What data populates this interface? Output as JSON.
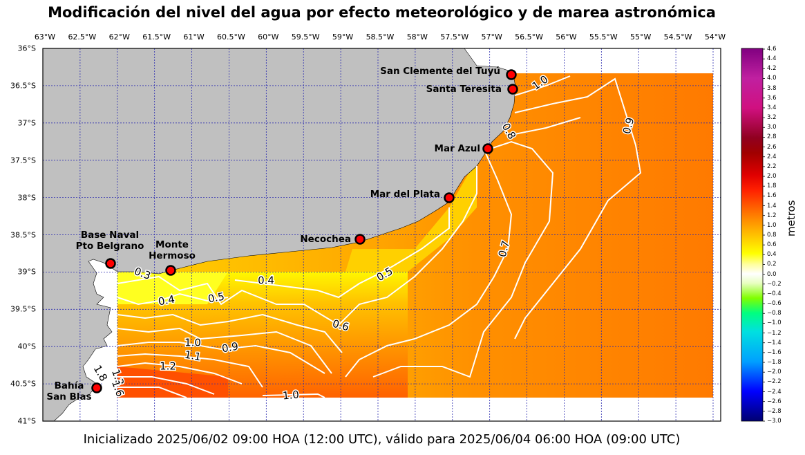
{
  "title": "Modificación del nivel del agua por efecto meteorológico y de marea astronómica",
  "footer": "Inicializado 2025/06/02 09:00 HOA (12:00 UTC), válido para 2025/06/04 06:00 HOA (09:00 UTC)",
  "map": {
    "lon_labels": [
      "63°W",
      "62.5°W",
      "62°W",
      "61.5°W",
      "61°W",
      "60.5°W",
      "60°W",
      "59.5°W",
      "59°W",
      "58.5°W",
      "58°W",
      "57.5°W",
      "57°W",
      "56.5°W",
      "56°W",
      "55.5°W",
      "55°W",
      "54.5°W",
      "54°W"
    ],
    "lat_labels": [
      "36°S",
      "36.5°S",
      "37°S",
      "37.5°S",
      "38°S",
      "38.5°S",
      "39°S",
      "39.5°S",
      "40°S",
      "40.5°S",
      "41°S"
    ],
    "land_color": "#c0c0c0",
    "grid_color": "#2b2bb0",
    "contour_color": "#ffffff",
    "contour_labels": [
      "1.0",
      "0.8",
      "0.9",
      "0.7",
      "0.5",
      "0.4",
      "0.3",
      "0.4",
      "0.5",
      "0.6",
      "0.9",
      "1.0",
      "1.1",
      "1.2",
      "1.0",
      "1.8",
      "1.3",
      "1.6"
    ]
  },
  "cities": [
    {
      "id": "san-clemente",
      "label": "San Clemente del Tuyú"
    },
    {
      "id": "santa-teresita",
      "label": "Santa Teresita"
    },
    {
      "id": "mar-azul",
      "label": "Mar Azul"
    },
    {
      "id": "mar-del-plata",
      "label": "Mar del Plata"
    },
    {
      "id": "necochea",
      "label": "Necochea"
    },
    {
      "id": "base-naval",
      "label_line1": "Base Naval",
      "label_line2": "Pto Belgrano"
    },
    {
      "id": "monte-hermoso",
      "label_line1": "Monte",
      "label_line2": "Hermoso"
    },
    {
      "id": "bahia-san-blas",
      "label_line1": "Bahía",
      "label_line2": "San Blas"
    }
  ],
  "colorbar": {
    "title": "metros",
    "ticks": [
      "4.6",
      "4.4",
      "4.2",
      "4.0",
      "3.8",
      "3.6",
      "3.4",
      "3.2",
      "3.0",
      "2.8",
      "2.6",
      "2.4",
      "2.2",
      "2.0",
      "1.8",
      "1.6",
      "1.4",
      "1.2",
      "1.0",
      "0.8",
      "0.6",
      "0.4",
      "0.2",
      "0.0",
      "−0.2",
      "−0.4",
      "−0.6",
      "−0.8",
      "−1.0",
      "−1.2",
      "−1.4",
      "−1.6",
      "−1.8",
      "−2.0",
      "−2.2",
      "−2.4",
      "−2.6",
      "−2.8",
      "−3.0"
    ]
  }
}
